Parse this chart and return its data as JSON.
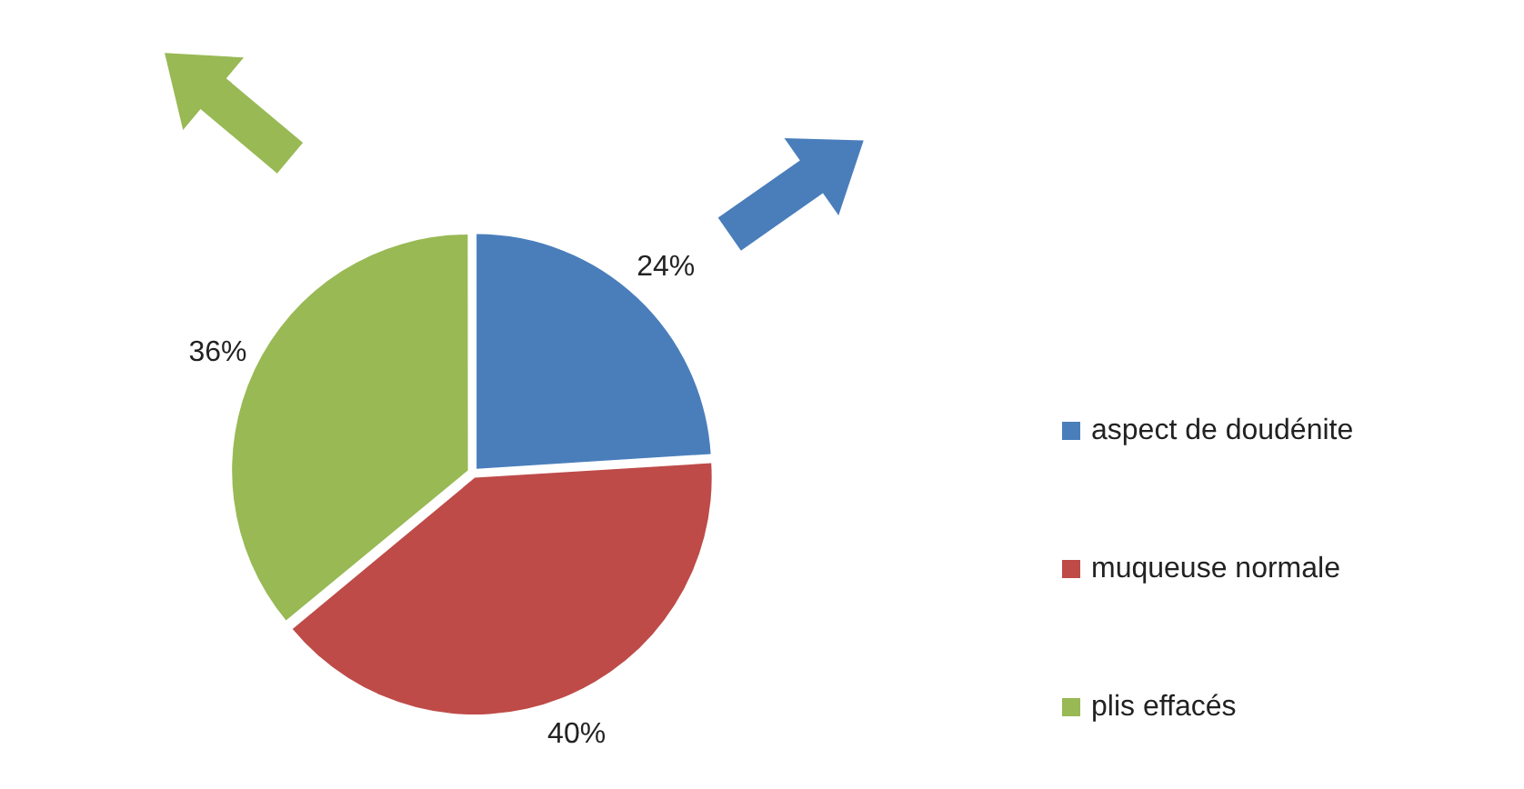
{
  "chart_data": {
    "type": "pie",
    "categories": [
      "aspect de doudénite",
      "muqueuse normale",
      "plis effacés"
    ],
    "values": [
      24,
      40,
      36
    ],
    "colors": [
      "#4a7ebb",
      "#be4b48",
      "#98b954"
    ],
    "value_labels": [
      "24%",
      "40%",
      "36%"
    ],
    "legend": "right"
  }
}
